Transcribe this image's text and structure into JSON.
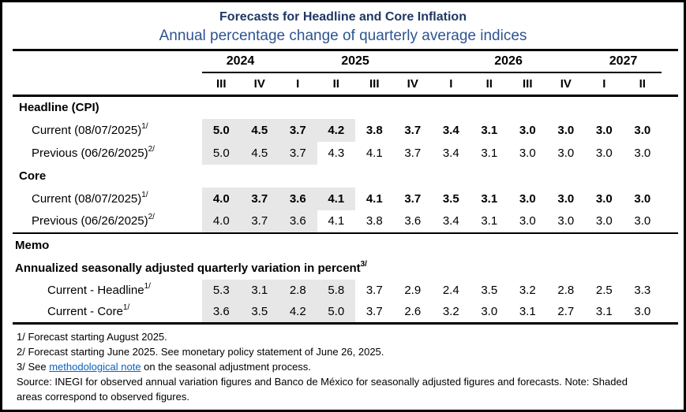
{
  "title": "Forecasts for Headline and Core Inflation",
  "subtitle": "Annual percentage change of quarterly average indices",
  "colors": {
    "title_text": "#1F3864",
    "subtitle_text": "#2E5490",
    "shaded_cell": "#E7E7E7",
    "link": "#0563C1",
    "rule": "#000000"
  },
  "table": {
    "year_groups": [
      {
        "label": "2024",
        "span": 2
      },
      {
        "label": "2025",
        "span": 4
      },
      {
        "label": "2026",
        "span": 4
      },
      {
        "label": "2027",
        "span": 2
      }
    ],
    "quarters": [
      "III",
      "IV",
      "I",
      "II",
      "III",
      "IV",
      "I",
      "II",
      "III",
      "IV",
      "I",
      "II"
    ],
    "sections": [
      {
        "header": "Headline (CPI)",
        "rows": [
          {
            "label": "Current (08/07/2025)",
            "sup": "1/",
            "bold": true,
            "shaded_count": 4,
            "values": [
              "5.0",
              "4.5",
              "3.7",
              "4.2",
              "3.8",
              "3.7",
              "3.4",
              "3.1",
              "3.0",
              "3.0",
              "3.0",
              "3.0"
            ]
          },
          {
            "label": "Previous (06/26/2025)",
            "sup": "2/",
            "bold": false,
            "shaded_count": 3,
            "values": [
              "5.0",
              "4.5",
              "3.7",
              "4.3",
              "4.1",
              "3.7",
              "3.4",
              "3.1",
              "3.0",
              "3.0",
              "3.0",
              "3.0"
            ]
          }
        ]
      },
      {
        "header": "Core",
        "rows": [
          {
            "label": "Current (08/07/2025)",
            "sup": "1/",
            "bold": true,
            "shaded_count": 4,
            "values": [
              "4.0",
              "3.7",
              "3.6",
              "4.1",
              "4.1",
              "3.7",
              "3.5",
              "3.1",
              "3.0",
              "3.0",
              "3.0",
              "3.0"
            ]
          },
          {
            "label": "Previous (06/26/2025)",
            "sup": "2/",
            "bold": false,
            "shaded_count": 3,
            "values": [
              "4.0",
              "3.7",
              "3.6",
              "4.1",
              "3.8",
              "3.6",
              "3.4",
              "3.1",
              "3.0",
              "3.0",
              "3.0",
              "3.0"
            ]
          }
        ]
      }
    ],
    "memo": {
      "header": "Memo",
      "subheader": "Annualized seasonally adjusted quarterly variation in percent",
      "subheader_sup": "3/",
      "rows": [
        {
          "label": "Current - Headline",
          "sup": "1/",
          "bold": false,
          "shaded_count": 4,
          "values": [
            "5.3",
            "3.1",
            "2.8",
            "5.8",
            "3.7",
            "2.9",
            "2.4",
            "3.5",
            "3.2",
            "2.8",
            "2.5",
            "3.3"
          ]
        },
        {
          "label": "Current - Core",
          "sup": "1/",
          "bold": false,
          "shaded_count": 4,
          "values": [
            "3.6",
            "3.5",
            "4.2",
            "5.0",
            "3.7",
            "2.6",
            "3.2",
            "3.0",
            "3.1",
            "2.7",
            "3.1",
            "3.0"
          ]
        }
      ]
    }
  },
  "footnotes": {
    "fn1": "1/ Forecast starting August 2025.",
    "fn2": "2/ Forecast starting June 2025. See monetary policy statement of June 26, 2025.",
    "fn3_pre": "3/ See ",
    "fn3_link": "methodological note",
    "fn3_post": " on the seasonal adjustment process.",
    "source": "Source: INEGI for observed annual variation figures and Banco de México for seasonally adjusted figures and forecasts. Note: Shaded areas correspond to observed figures."
  }
}
